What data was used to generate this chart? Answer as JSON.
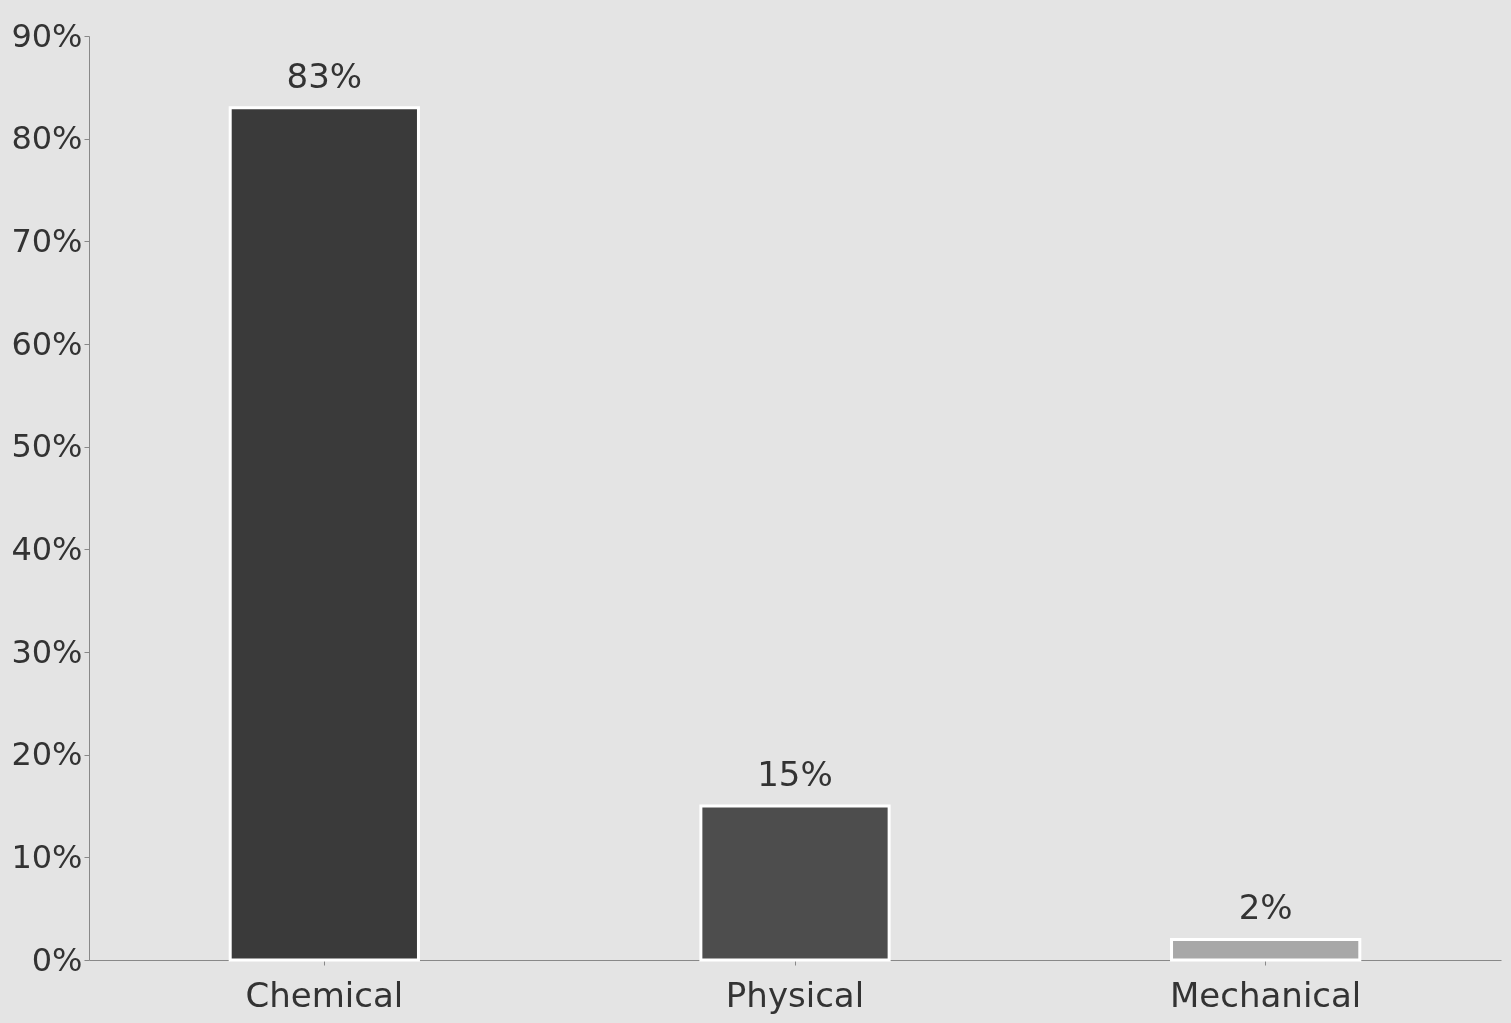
{
  "chart_data": {
    "type": "bar",
    "categories": [
      "Chemical",
      "Physical",
      "Mechanical"
    ],
    "values": [
      83,
      15,
      2
    ],
    "colors": [
      "#3a3a3a",
      "#4d4d4d",
      "#a8a8a8"
    ],
    "value_labels": [
      "83%",
      "15%",
      "2%"
    ],
    "ylim": [
      0,
      90
    ],
    "yticks": [
      {
        "value": 0,
        "label": "0%"
      },
      {
        "value": 10,
        "label": "10%"
      },
      {
        "value": 20,
        "label": "20%"
      },
      {
        "value": 30,
        "label": "30%"
      },
      {
        "value": 40,
        "label": "40%"
      },
      {
        "value": 50,
        "label": "50%"
      },
      {
        "value": 60,
        "label": "60%"
      },
      {
        "value": 70,
        "label": "70%"
      },
      {
        "value": 80,
        "label": "80%"
      },
      {
        "value": 90,
        "label": "90%"
      }
    ],
    "grid": false
  }
}
